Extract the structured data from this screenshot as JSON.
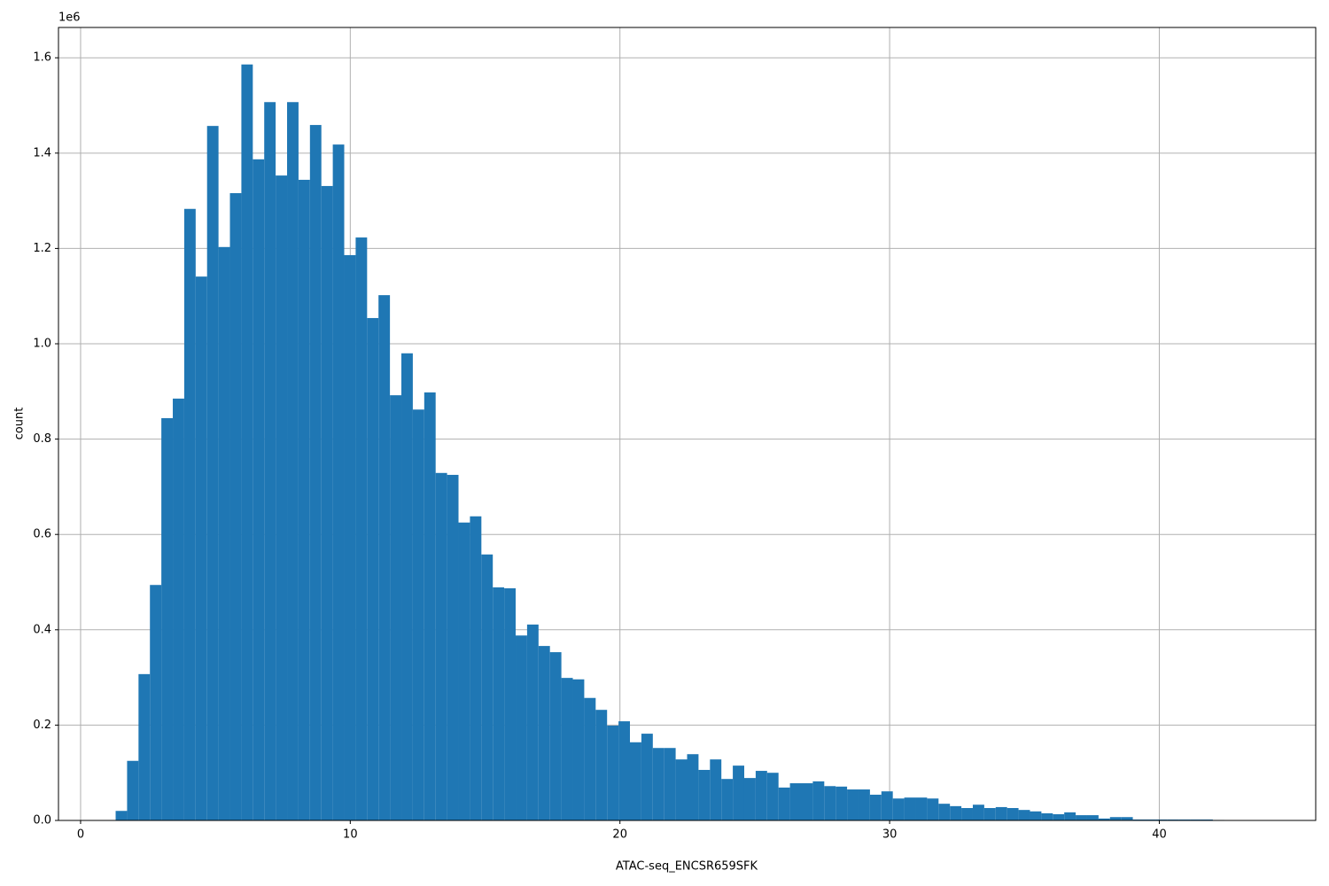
{
  "chart_data": {
    "type": "histogram",
    "x_label": "ATAC-seq_ENCSR659SFK",
    "y_label": "count",
    "y_offset_label": "1e6",
    "color": "#1f77b4",
    "grid": true,
    "bins": [
      1.3,
      1.724,
      2.148,
      2.571,
      2.995,
      3.419,
      3.843,
      4.267,
      4.69,
      5.114,
      5.538,
      5.962,
      6.386,
      6.809,
      7.233,
      7.657,
      8.081,
      8.505,
      8.928,
      9.352,
      9.776,
      10.2,
      10.624,
      11.047,
      11.471,
      11.895,
      12.319,
      12.743,
      13.166,
      13.59,
      14.014,
      14.438,
      14.862,
      15.285,
      15.709,
      16.133,
      16.557,
      16.981,
      17.404,
      17.828,
      18.252,
      18.676,
      19.1,
      19.523,
      19.947,
      20.371,
      20.795,
      21.219,
      21.642,
      22.066,
      22.49,
      22.914,
      23.338,
      23.761,
      24.185,
      24.609,
      25.033,
      25.457,
      25.88,
      26.304,
      26.728,
      27.152,
      27.576,
      27.999,
      28.423,
      28.847,
      29.271,
      29.695,
      30.118,
      30.542,
      30.966,
      31.39,
      31.814,
      32.237,
      32.661,
      33.085,
      33.509,
      33.933,
      34.356,
      34.78,
      35.204,
      35.628,
      36.052,
      36.475,
      36.899,
      37.323,
      37.747,
      38.171,
      38.594,
      39.018,
      39.442,
      39.866,
      40.29,
      40.713,
      41.137,
      41.561,
      41.985,
      42.409,
      42.832,
      43.256,
      43.68
    ],
    "values": [
      0.02,
      0.125,
      0.307,
      0.494,
      0.844,
      0.885,
      1.283,
      1.141,
      1.457,
      1.203,
      1.316,
      1.586,
      1.387,
      1.507,
      1.353,
      1.507,
      1.344,
      1.459,
      1.331,
      1.418,
      1.186,
      1.223,
      1.054,
      1.102,
      0.892,
      0.98,
      0.862,
      0.898,
      0.729,
      0.725,
      0.625,
      0.638,
      0.558,
      0.489,
      0.487,
      0.388,
      0.411,
      0.366,
      0.353,
      0.299,
      0.296,
      0.257,
      0.232,
      0.199,
      0.208,
      0.164,
      0.182,
      0.152,
      0.152,
      0.128,
      0.139,
      0.106,
      0.128,
      0.087,
      0.115,
      0.089,
      0.104,
      0.1,
      0.069,
      0.078,
      0.078,
      0.082,
      0.072,
      0.071,
      0.065,
      0.065,
      0.054,
      0.061,
      0.046,
      0.048,
      0.048,
      0.046,
      0.035,
      0.03,
      0.026,
      0.033,
      0.026,
      0.028,
      0.026,
      0.022,
      0.019,
      0.015,
      0.013,
      0.017,
      0.011,
      0.011,
      0.004,
      0.007,
      0.007,
      0.002,
      0.002,
      0.002,
      0.002,
      0.002,
      0.002,
      0.002,
      0.001,
      0.0005,
      0.0005,
      0.0005
    ],
    "xlim": [
      -0.82,
      45.8
    ],
    "xticks": [
      0,
      10,
      20,
      30,
      40
    ],
    "ylim": [
      0,
      1.6636
    ],
    "yticks": [
      {
        "value": 0,
        "label": "0.0"
      },
      0.2,
      0.4,
      0.6,
      0.8,
      {
        "value": 1,
        "label": "1.0"
      },
      1.2,
      1.4,
      1.6
    ]
  }
}
